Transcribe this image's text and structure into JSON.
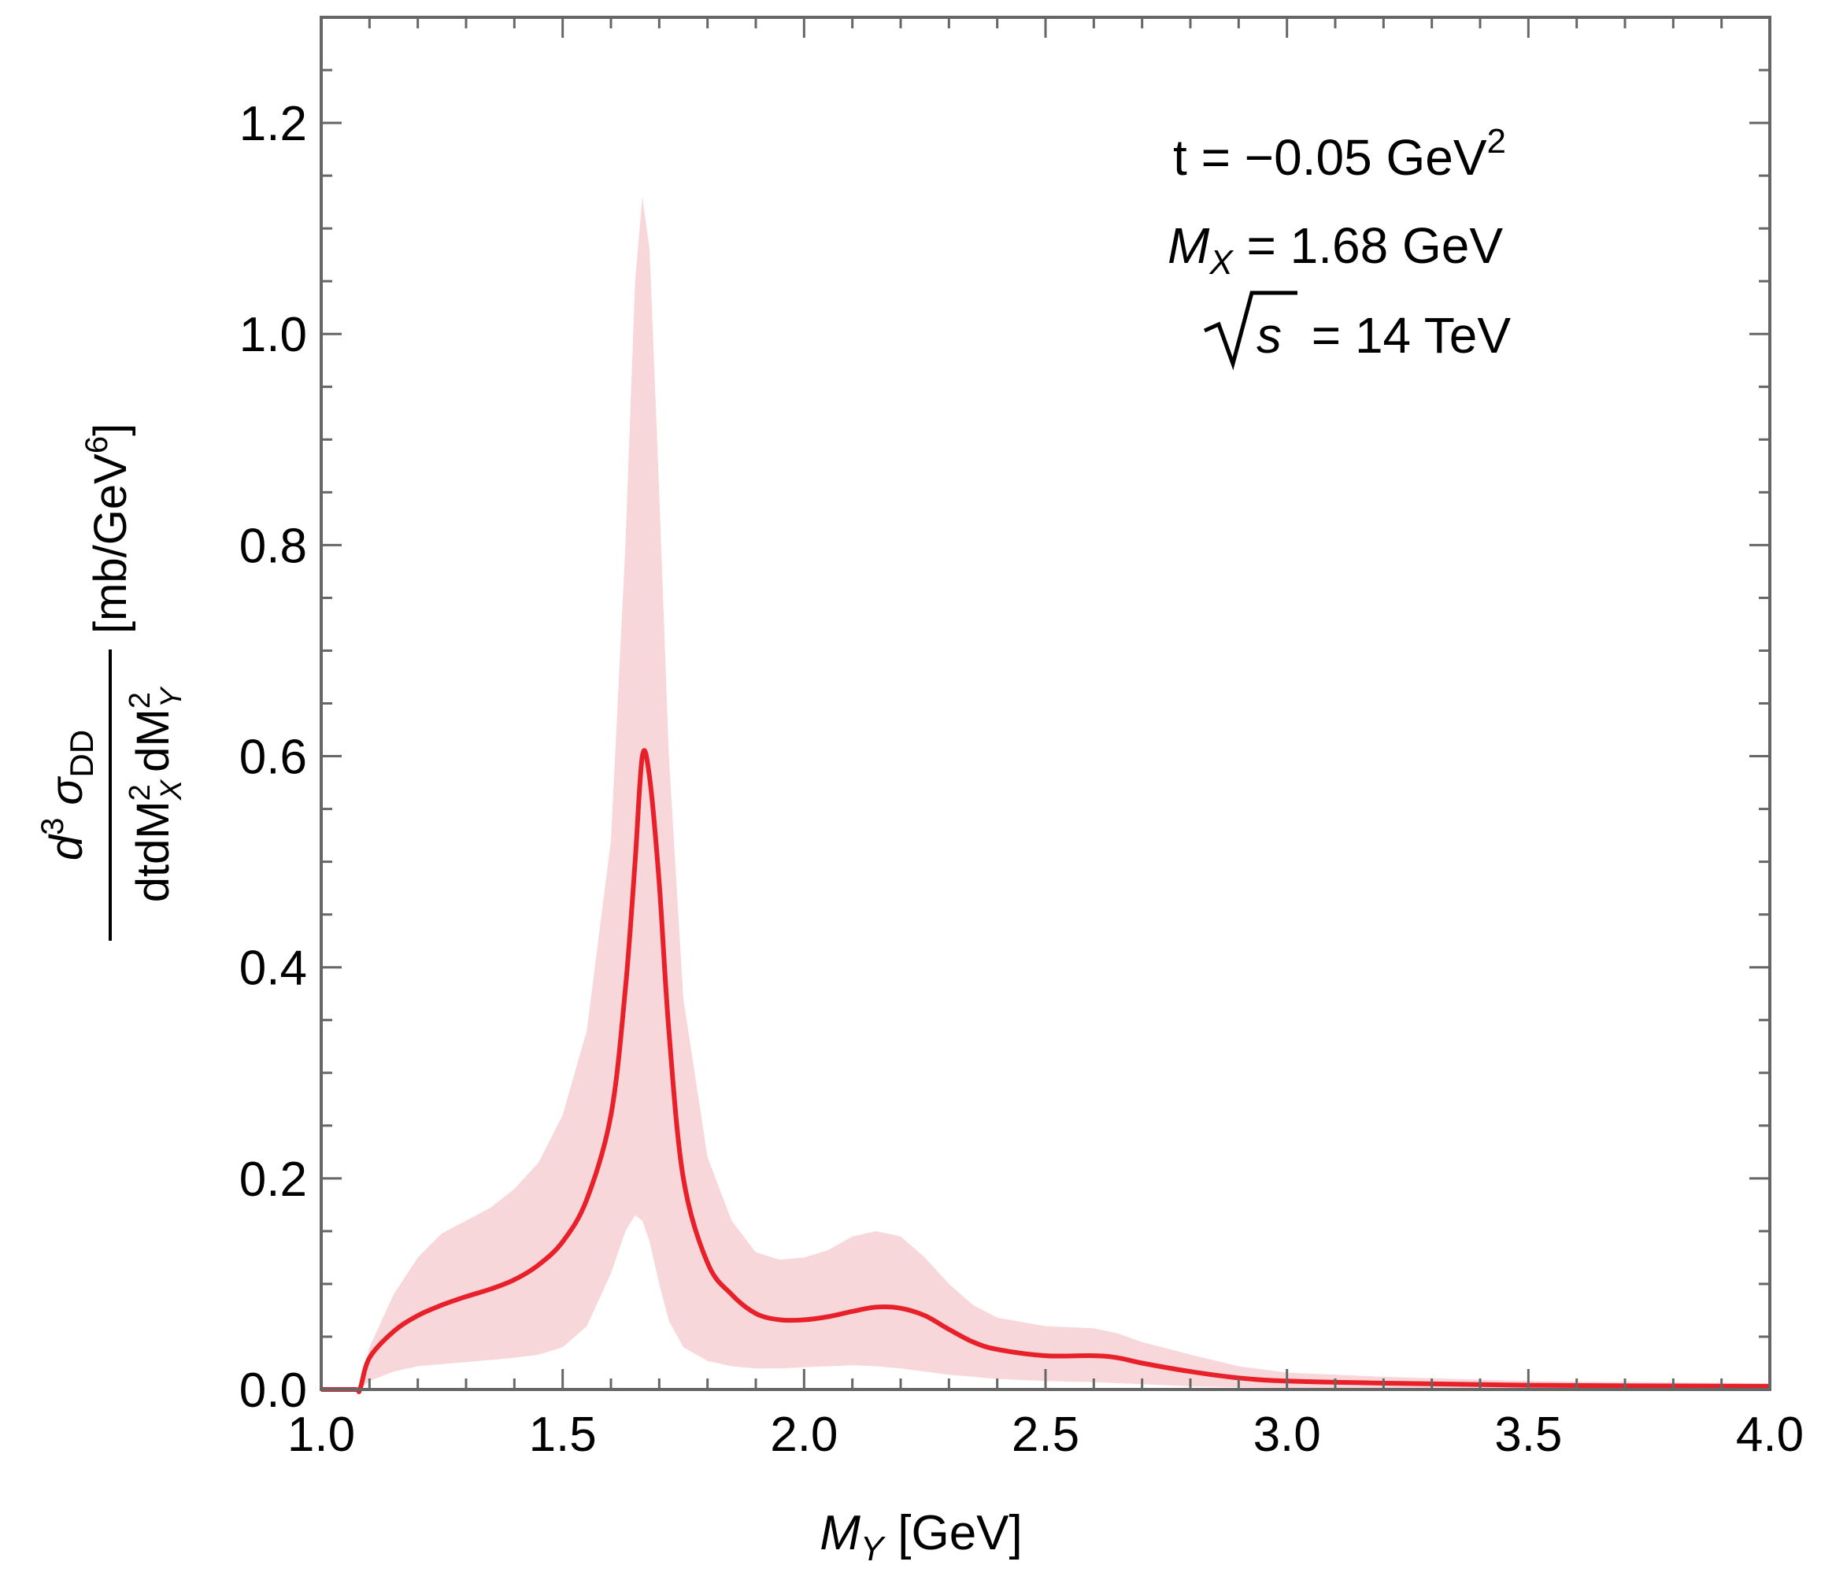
{
  "chart_data": {
    "type": "line",
    "xlabel_var": "M",
    "xlabel_sub": "Y",
    "xlabel_unit": "[GeV]",
    "ylabel": {
      "numerator_d": "d",
      "numerator_exp": "3",
      "numerator_sigma": "σ",
      "numerator_sub": "DD",
      "denominator_prefix": "dtdM",
      "denominator_sup1": "2",
      "denominator_sub1": "X",
      "denominator_mid": "dM",
      "denominator_sup2": "2",
      "denominator_sub2": "Y",
      "unit_prefix": "[mb/GeV",
      "unit_exp": "6",
      "unit_suffix": "]"
    },
    "xlim": [
      1.0,
      4.0
    ],
    "ylim": [
      0.0,
      1.3
    ],
    "x_ticks": [
      "1.0",
      "1.5",
      "2.0",
      "2.5",
      "3.0",
      "3.5",
      "4.0"
    ],
    "y_ticks": [
      "0.0",
      "0.2",
      "0.4",
      "0.6",
      "0.8",
      "1.0",
      "1.2"
    ],
    "annotations": {
      "t_text": "t = −0.05 GeV",
      "t_exp": "2",
      "mx_var": "M",
      "mx_sub": "X",
      "mx_text": " = 1.68 GeV",
      "s_var": "s",
      "s_text": " = 14 TeV"
    },
    "series": [
      {
        "name": "central",
        "color": "#e8202a",
        "x": [
          1.0,
          1.07,
          1.08,
          1.1,
          1.15,
          1.2,
          1.25,
          1.3,
          1.35,
          1.4,
          1.45,
          1.5,
          1.55,
          1.6,
          1.63,
          1.65,
          1.665,
          1.68,
          1.7,
          1.72,
          1.75,
          1.8,
          1.85,
          1.9,
          1.95,
          2.0,
          2.05,
          2.1,
          2.15,
          2.2,
          2.25,
          2.3,
          2.35,
          2.4,
          2.5,
          2.6,
          2.65,
          2.7,
          2.8,
          2.9,
          3.0,
          3.2,
          3.5,
          4.0
        ],
        "y": [
          0.0,
          0.0,
          0.0,
          0.03,
          0.055,
          0.07,
          0.08,
          0.088,
          0.095,
          0.104,
          0.118,
          0.14,
          0.18,
          0.26,
          0.38,
          0.5,
          0.6,
          0.58,
          0.48,
          0.34,
          0.2,
          0.12,
          0.09,
          0.072,
          0.066,
          0.066,
          0.069,
          0.074,
          0.078,
          0.077,
          0.07,
          0.057,
          0.045,
          0.038,
          0.032,
          0.032,
          0.03,
          0.025,
          0.017,
          0.011,
          0.008,
          0.006,
          0.004,
          0.003
        ]
      },
      {
        "name": "band-upper",
        "color": "#f8d7da",
        "x": [
          1.0,
          1.07,
          1.08,
          1.1,
          1.15,
          1.2,
          1.25,
          1.3,
          1.35,
          1.4,
          1.45,
          1.5,
          1.55,
          1.6,
          1.63,
          1.65,
          1.665,
          1.68,
          1.7,
          1.72,
          1.75,
          1.8,
          1.85,
          1.9,
          1.95,
          2.0,
          2.05,
          2.1,
          2.15,
          2.2,
          2.25,
          2.3,
          2.35,
          2.4,
          2.5,
          2.6,
          2.65,
          2.7,
          2.8,
          2.9,
          3.0,
          3.2,
          3.5,
          4.0
        ],
        "y": [
          0.0,
          0.0,
          0.0,
          0.04,
          0.09,
          0.125,
          0.148,
          0.16,
          0.172,
          0.19,
          0.215,
          0.26,
          0.34,
          0.52,
          0.8,
          1.05,
          1.13,
          1.08,
          0.85,
          0.6,
          0.37,
          0.22,
          0.16,
          0.13,
          0.123,
          0.125,
          0.132,
          0.145,
          0.15,
          0.145,
          0.125,
          0.1,
          0.08,
          0.068,
          0.06,
          0.058,
          0.053,
          0.045,
          0.033,
          0.022,
          0.016,
          0.012,
          0.008,
          0.006
        ]
      },
      {
        "name": "band-lower",
        "color": "#f8d7da",
        "x": [
          1.0,
          1.07,
          1.08,
          1.1,
          1.15,
          1.2,
          1.25,
          1.3,
          1.35,
          1.4,
          1.45,
          1.5,
          1.55,
          1.6,
          1.63,
          1.65,
          1.665,
          1.68,
          1.7,
          1.72,
          1.75,
          1.8,
          1.85,
          1.9,
          1.95,
          2.0,
          2.05,
          2.1,
          2.15,
          2.2,
          2.25,
          2.3,
          2.35,
          2.4,
          2.5,
          2.6,
          2.65,
          2.7,
          2.8,
          2.9,
          3.0,
          3.2,
          3.5,
          4.0
        ],
        "y": [
          0.0,
          0.0,
          0.0,
          0.008,
          0.017,
          0.022,
          0.024,
          0.026,
          0.028,
          0.03,
          0.033,
          0.04,
          0.06,
          0.11,
          0.15,
          0.165,
          0.16,
          0.14,
          0.1,
          0.065,
          0.04,
          0.027,
          0.022,
          0.02,
          0.02,
          0.021,
          0.022,
          0.023,
          0.022,
          0.02,
          0.017,
          0.014,
          0.012,
          0.01,
          0.008,
          0.007,
          0.006,
          0.005,
          0.003,
          0.002,
          0.0015,
          0.001,
          0.0008,
          0.0005
        ]
      }
    ]
  }
}
